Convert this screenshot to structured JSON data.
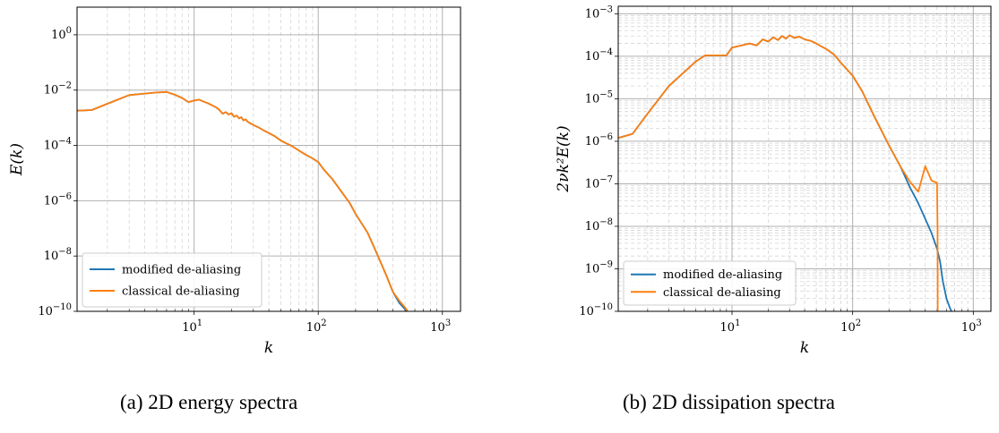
{
  "captions": [
    "(a) 2D energy spectra",
    "(b) 2D dissipation spectra"
  ],
  "colors": {
    "modified": "#1f77b4",
    "classical": "#ff7f0e",
    "grid_major": "#b0b0b0",
    "grid_minor": "#d5d5d5"
  },
  "chart_data": [
    {
      "type": "line",
      "xlabel": "k",
      "ylabel": "E(k)",
      "xscale": "log",
      "yscale": "log",
      "xlim": [
        1.14,
        1400
      ],
      "ylim": [
        1e-10,
        10
      ],
      "x_ticks": [
        10,
        100,
        1000
      ],
      "y_ticks": [
        -10,
        -8,
        -6,
        -4,
        -2,
        0
      ],
      "grid": true,
      "legend_position": "lower-left",
      "series": [
        {
          "name": "modified de-aliasing",
          "x": [
            1.14,
            1.5,
            2,
            3,
            4,
            5,
            6,
            7,
            8,
            9,
            10,
            11,
            12,
            13,
            14,
            15,
            16,
            17,
            18,
            19,
            20,
            21,
            22,
            23,
            24,
            25,
            26,
            27,
            28,
            30,
            33,
            36,
            40,
            45,
            50,
            55,
            60,
            70,
            80,
            90,
            100,
            110,
            130,
            150,
            180,
            200,
            250,
            300,
            350,
            400,
            450,
            500,
            530,
            550
          ],
          "y": [
            0.0018,
            0.0019,
            0.0032,
            0.0066,
            0.0075,
            0.0082,
            0.0086,
            0.0068,
            0.0052,
            0.0037,
            0.0042,
            0.0045,
            0.0038,
            0.0033,
            0.0028,
            0.0024,
            0.0019,
            0.0014,
            0.0016,
            0.0013,
            0.00145,
            0.0011,
            0.0012,
            0.00095,
            0.00105,
            0.0008,
            0.00088,
            0.00072,
            0.00065,
            0.00055,
            0.00045,
            0.00036,
            0.00028,
            0.00021,
            0.00015,
            0.00012,
            0.0001,
            6.5e-05,
            4.5e-05,
            3.4e-05,
            2.5e-05,
            1.4e-05,
            6e-06,
            2.5e-06,
            8e-07,
            3.3e-07,
            7e-08,
            1.1e-08,
            2.2e-09,
            5e-10,
            2e-10,
            1.2e-10,
            9e-11,
            7e-11
          ]
        },
        {
          "name": "classical de-aliasing",
          "x": [
            1.14,
            1.5,
            2,
            3,
            4,
            5,
            6,
            7,
            8,
            9,
            10,
            11,
            12,
            13,
            14,
            15,
            16,
            17,
            18,
            19,
            20,
            21,
            22,
            23,
            24,
            25,
            26,
            27,
            28,
            30,
            33,
            36,
            40,
            45,
            50,
            55,
            60,
            70,
            80,
            90,
            100,
            110,
            130,
            150,
            180,
            200,
            250,
            300,
            350,
            400,
            450,
            500,
            520,
            530
          ],
          "y": [
            0.0018,
            0.0019,
            0.0032,
            0.0066,
            0.0075,
            0.0082,
            0.0086,
            0.0068,
            0.0052,
            0.0037,
            0.0042,
            0.0045,
            0.0038,
            0.0033,
            0.0028,
            0.0024,
            0.0019,
            0.0014,
            0.0016,
            0.0013,
            0.00145,
            0.0011,
            0.0012,
            0.00095,
            0.00105,
            0.0008,
            0.00088,
            0.00072,
            0.00065,
            0.00055,
            0.00045,
            0.00036,
            0.00028,
            0.00021,
            0.00015,
            0.00012,
            0.0001,
            6.5e-05,
            4.5e-05,
            3.4e-05,
            2.5e-05,
            1.4e-05,
            6e-06,
            2.5e-06,
            8e-07,
            3.3e-07,
            7e-08,
            1.1e-08,
            2.2e-09,
            5e-10,
            2.4e-10,
            1.4e-10,
            1.1e-10,
            6e-11
          ]
        }
      ]
    },
    {
      "type": "line",
      "xlabel": "k",
      "ylabel": "2νk²E(k)",
      "xscale": "log",
      "yscale": "log",
      "xlim": [
        1.14,
        1400
      ],
      "ylim": [
        1e-10,
        0.0015
      ],
      "x_ticks": [
        10,
        100,
        1000
      ],
      "y_ticks": [
        -10,
        -9,
        -8,
        -7,
        -6,
        -5,
        -4,
        -3
      ],
      "grid": true,
      "legend_position": "lower-left",
      "series": [
        {
          "name": "modified de-aliasing",
          "x": [
            1.14,
            1.5,
            2,
            3,
            4,
            5,
            6,
            7,
            8,
            9,
            10,
            12,
            14,
            16,
            18,
            20,
            22,
            24,
            26,
            28,
            30,
            33,
            36,
            40,
            45,
            50,
            55,
            60,
            70,
            80,
            100,
            120,
            150,
            200,
            250,
            300,
            350,
            400,
            450,
            500,
            530,
            560,
            600,
            640,
            660
          ],
          "y": [
            1.2e-06,
            1.5e-06,
            4.5e-06,
            2e-05,
            4.2e-05,
            7.5e-05,
            0.000105,
            0.000105,
            0.000105,
            0.000105,
            0.00016,
            0.00018,
            0.0002,
            0.00018,
            0.00025,
            0.00022,
            0.00028,
            0.00024,
            0.0003,
            0.00026,
            0.00031,
            0.00027,
            0.00029,
            0.00025,
            0.00023,
            0.0002,
            0.00017,
            0.00015,
            0.00011,
            7e-05,
            3.5e-05,
            1.5e-05,
            4e-06,
            8e-07,
            2.5e-07,
            8e-08,
            3.5e-08,
            1.5e-08,
            7e-09,
            3e-09,
            1.5e-09,
            5e-10,
            2e-10,
            1.2e-10,
            1e-10
          ]
        },
        {
          "name": "classical de-aliasing",
          "x": [
            1.14,
            1.5,
            2,
            3,
            4,
            5,
            6,
            7,
            8,
            9,
            10,
            12,
            14,
            16,
            18,
            20,
            22,
            24,
            26,
            28,
            30,
            33,
            36,
            40,
            45,
            50,
            55,
            60,
            70,
            80,
            100,
            120,
            150,
            200,
            250,
            300,
            350,
            400,
            450,
            480,
            500,
            505,
            507
          ],
          "y": [
            1.2e-06,
            1.5e-06,
            4.5e-06,
            2e-05,
            4.2e-05,
            7.5e-05,
            0.000105,
            0.000105,
            0.000105,
            0.000105,
            0.00016,
            0.00018,
            0.0002,
            0.00018,
            0.00025,
            0.00022,
            0.00028,
            0.00024,
            0.0003,
            0.00026,
            0.00031,
            0.00027,
            0.00029,
            0.00025,
            0.00023,
            0.0002,
            0.00017,
            0.00015,
            0.00011,
            7e-05,
            3.5e-05,
            1.5e-05,
            4e-06,
            8e-07,
            2.5e-07,
            1.1e-07,
            6.5e-08,
            2.6e-07,
            1.2e-07,
            1.1e-07,
            1.05e-07,
            1e-08,
            1e-10
          ]
        }
      ]
    }
  ]
}
